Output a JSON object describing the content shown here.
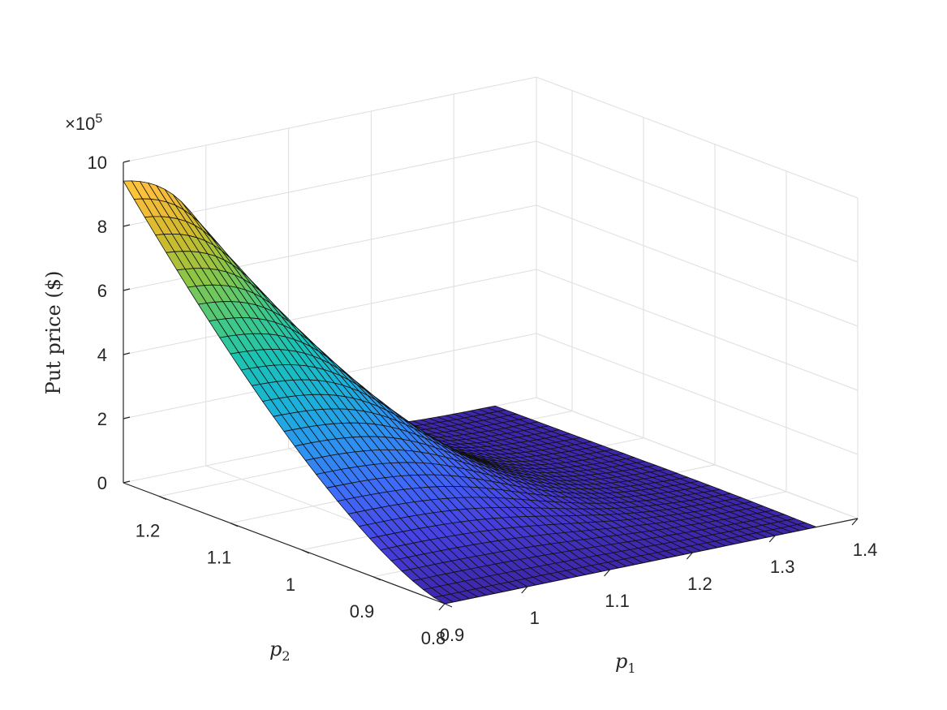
{
  "chart_data": {
    "type": "surface",
    "xlabel_base": "p",
    "xlabel_sub": "1",
    "ylabel_base": "p",
    "ylabel_sub": "2",
    "zlabel": "Put price ($)",
    "exponent_prefix": "×10",
    "exponent_power": "5",
    "xlim": [
      0.9,
      1.4
    ],
    "ylim": [
      0.8,
      1.25
    ],
    "zlim": [
      0,
      1000000
    ],
    "x_ticks": [
      {
        "value": 0.9,
        "label": "0.9"
      },
      {
        "value": 1.0,
        "label": "1"
      },
      {
        "value": 1.1,
        "label": "1.1"
      },
      {
        "value": 1.2,
        "label": "1.2"
      },
      {
        "value": 1.3,
        "label": "1.3"
      },
      {
        "value": 1.4,
        "label": "1.4"
      }
    ],
    "y_ticks": [
      {
        "value": 0.8,
        "label": "0.8"
      },
      {
        "value": 0.9,
        "label": "0.9"
      },
      {
        "value": 1.0,
        "label": "1"
      },
      {
        "value": 1.1,
        "label": "1.1"
      },
      {
        "value": 1.2,
        "label": "1.2"
      }
    ],
    "z_ticks": [
      {
        "value": 0,
        "label": "0"
      },
      {
        "value": 200000,
        "label": "2"
      },
      {
        "value": 400000,
        "label": "4"
      },
      {
        "value": 600000,
        "label": "6"
      },
      {
        "value": 800000,
        "label": "8"
      },
      {
        "value": 1000000,
        "label": "10"
      }
    ],
    "surface": {
      "x_range": [
        0.9,
        1.35
      ],
      "y_range": [
        0.8,
        1.25
      ],
      "grid_cols": 45,
      "grid_rows": 30,
      "sample_points": [
        {
          "x": 0.9,
          "y": 1.25,
          "z": 940000
        },
        {
          "x": 1.04,
          "y": 1.25,
          "z": 970000
        },
        {
          "x": 1.35,
          "y": 1.25,
          "z": 0
        },
        {
          "x": 0.9,
          "y": 0.8,
          "z": 0
        },
        {
          "x": 1.35,
          "y": 0.8,
          "z": 0
        }
      ]
    },
    "colormap": [
      "#3e26a8",
      "#4741e1",
      "#3f6afb",
      "#2d92f1",
      "#1bb2da",
      "#19c3b5",
      "#45c982",
      "#8cc645",
      "#d1ba2c",
      "#fcbe3c",
      "#f9df22"
    ],
    "grid": true,
    "legend": "none"
  }
}
